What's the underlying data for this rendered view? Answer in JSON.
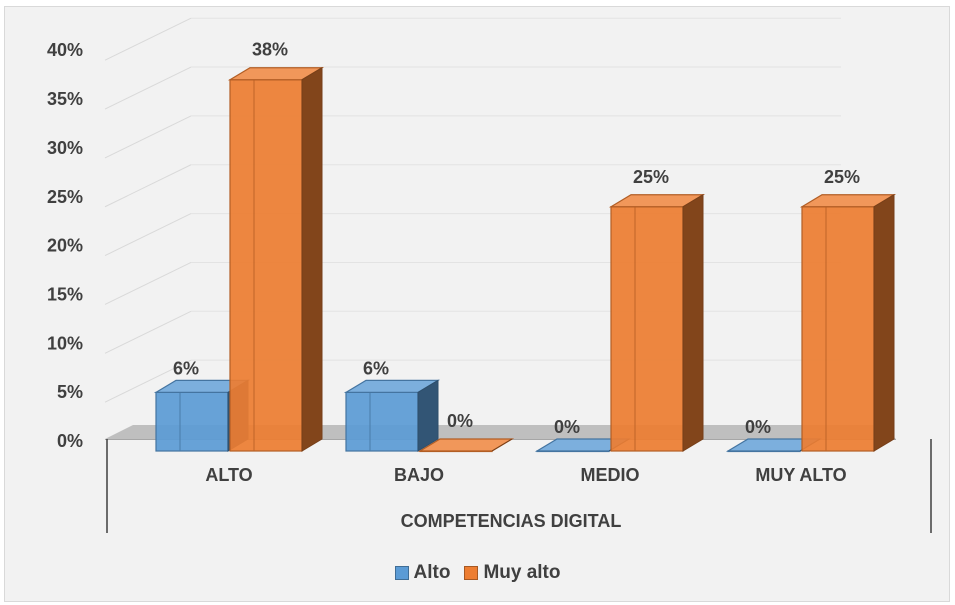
{
  "chart_data": {
    "type": "bar",
    "xlabel": "COMPETENCIAS DIGITAL",
    "ylabel": "",
    "ylim": [
      0,
      40
    ],
    "yticks": [
      "0%",
      "5%",
      "10%",
      "15%",
      "20%",
      "25%",
      "30%",
      "35%",
      "40%"
    ],
    "categories": [
      "ALTO",
      "BAJO",
      "MEDIO",
      "MUY ALTO"
    ],
    "series": [
      {
        "name": "Alto",
        "values": [
          6,
          6,
          0,
          0
        ],
        "labels": [
          "6%",
          "6%",
          "0%",
          "0%"
        ],
        "color": "#5b9bd5"
      },
      {
        "name": "Muy alto",
        "values": [
          38,
          0,
          25,
          25
        ],
        "labels": [
          "38%",
          "0%",
          "25%",
          "25%"
        ],
        "color": "#ed7d31"
      }
    ],
    "grid": true,
    "legend": "bottom",
    "style": "3d-clustered-column"
  }
}
